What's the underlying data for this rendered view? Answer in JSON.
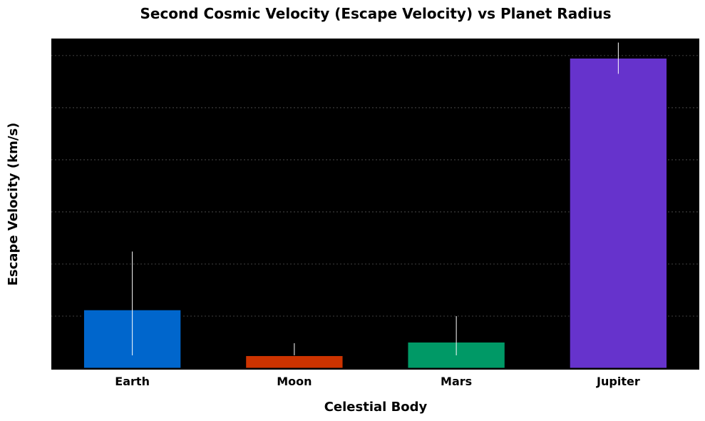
{
  "chart_data": {
    "type": "bar",
    "title": "Second Cosmic Velocity (Escape Velocity) vs Planet Radius",
    "xlabel": "Celestial Body",
    "ylabel": "Escape Velocity (km/s)",
    "categories": [
      "Earth",
      "Moon",
      "Mars",
      "Jupiter"
    ],
    "values": [
      11.2,
      2.4,
      5.0,
      59.5
    ],
    "error": [
      11.2,
      2.4,
      5.0,
      3.0
    ],
    "colors": [
      "#0066cc",
      "#cc3300",
      "#009966",
      "#6633cc"
    ],
    "ylim": [
      0,
      63
    ],
    "yticks": [
      0,
      10,
      20,
      30,
      40,
      50,
      60
    ],
    "grid": true,
    "background": "#000000"
  }
}
